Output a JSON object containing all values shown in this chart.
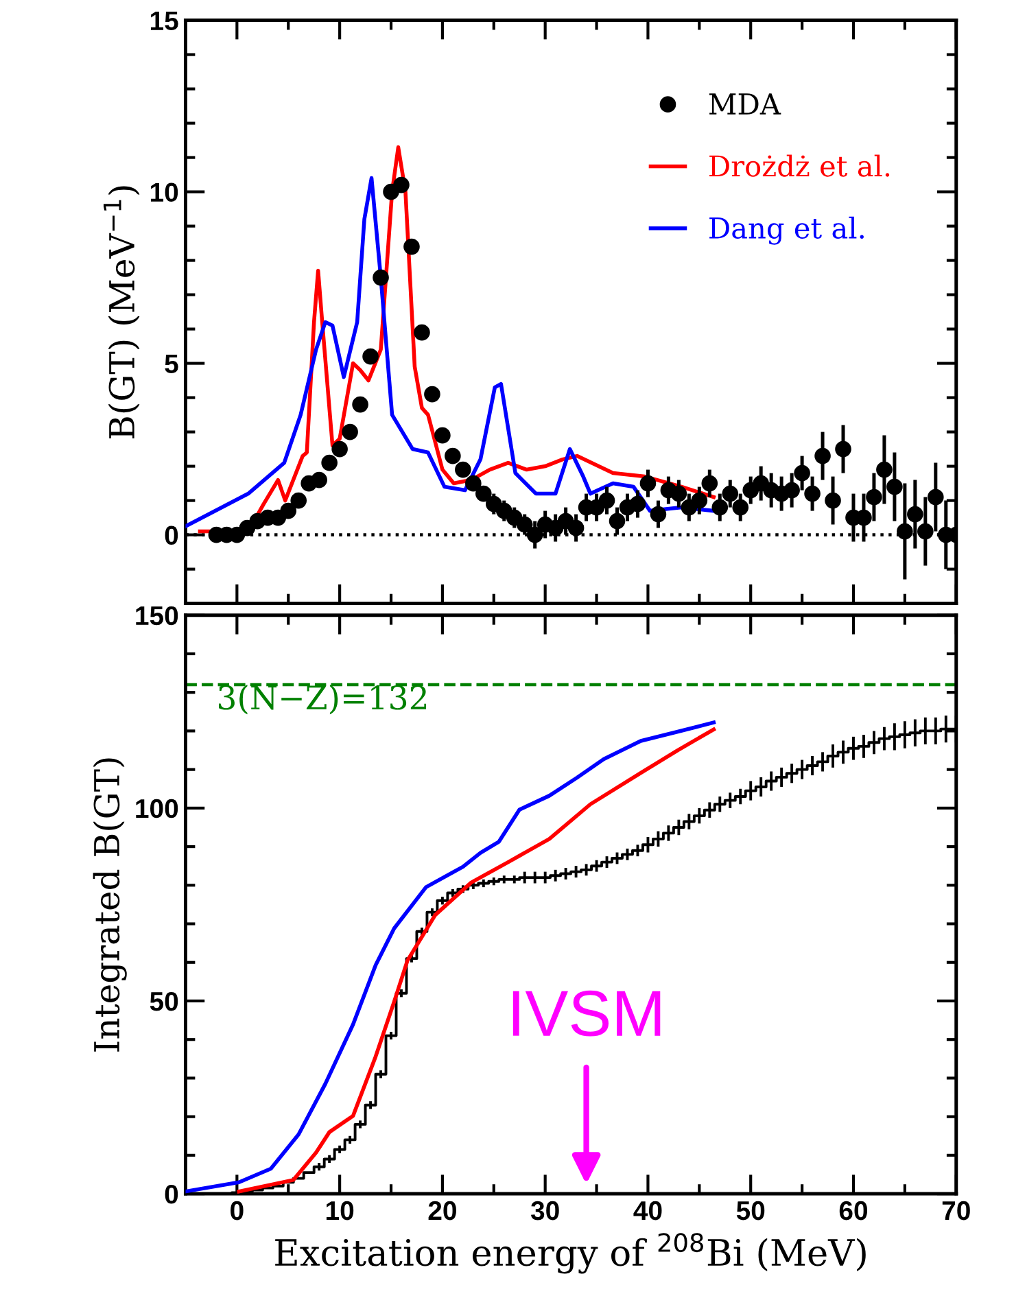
{
  "chart_data": [
    {
      "type": "line",
      "ylabel": "B(GT) (MeV$^{−1}$)",
      "xlim": [
        -5,
        70
      ],
      "xticks": [
        0,
        10,
        20,
        30,
        40,
        50,
        60,
        70
      ],
      "ylim": [
        -2,
        15
      ],
      "yticks": [
        0,
        5,
        10,
        15
      ],
      "tick_labels": "y",
      "legend": "top right",
      "grid": false,
      "ref_lines": [
        {
          "axis": "y",
          "value": 0,
          "color": "#000000",
          "line_style": "dotted"
        }
      ],
      "series": [
        {
          "name": "MDA",
          "type": "scatter",
          "color": "#000000",
          "marker": "circle",
          "x": [
            -2,
            -1,
            0,
            1,
            2,
            3,
            4,
            5,
            6,
            7,
            8,
            9,
            10,
            11,
            12,
            13,
            14,
            15,
            16,
            17,
            18,
            19,
            20,
            21,
            22,
            23,
            24,
            25,
            26,
            27,
            28,
            29,
            30,
            31,
            32,
            33,
            34,
            35,
            36,
            37,
            38,
            39,
            40,
            41,
            42,
            43,
            44,
            45,
            46,
            47,
            48,
            49,
            50,
            51,
            52,
            53,
            54,
            55,
            56,
            57,
            58,
            59,
            60,
            61,
            62,
            63,
            64,
            65,
            66,
            67,
            68,
            69,
            70
          ],
          "values": [
            0.0,
            0.0,
            0.0,
            0.2,
            0.4,
            0.5,
            0.5,
            0.7,
            1.0,
            1.5,
            1.6,
            2.1,
            2.5,
            3.0,
            3.8,
            5.2,
            7.5,
            10.0,
            10.2,
            8.4,
            5.9,
            4.1,
            2.9,
            2.3,
            1.9,
            1.5,
            1.2,
            0.9,
            0.7,
            0.5,
            0.3,
            0.0,
            0.3,
            0.2,
            0.4,
            0.2,
            0.8,
            0.8,
            1.0,
            0.4,
            0.8,
            0.9,
            1.5,
            0.6,
            1.3,
            1.2,
            0.8,
            1.0,
            1.5,
            0.8,
            1.2,
            0.8,
            1.3,
            1.5,
            1.3,
            1.2,
            1.3,
            1.8,
            1.2,
            2.3,
            1.0,
            2.5,
            0.5,
            0.5,
            1.1,
            1.9,
            1.4,
            0.1,
            0.6,
            0.1,
            1.1,
            0.0,
            0.0
          ],
          "errors": [
            0.1,
            0.1,
            0.1,
            0.1,
            0.1,
            0.1,
            0.1,
            0.1,
            0.1,
            0.1,
            0.1,
            0.1,
            0.1,
            0.1,
            0.1,
            0.1,
            0.1,
            0.1,
            0.1,
            0.1,
            0.1,
            0.1,
            0.2,
            0.2,
            0.2,
            0.2,
            0.2,
            0.3,
            0.3,
            0.3,
            0.3,
            0.4,
            0.4,
            0.4,
            0.4,
            0.4,
            0.4,
            0.4,
            0.4,
            0.4,
            0.4,
            0.4,
            0.4,
            0.4,
            0.4,
            0.4,
            0.4,
            0.4,
            0.4,
            0.4,
            0.4,
            0.4,
            0.4,
            0.5,
            0.5,
            0.5,
            0.5,
            0.5,
            0.5,
            0.7,
            0.7,
            0.7,
            0.7,
            0.7,
            0.7,
            1.0,
            1.0,
            1.4,
            1.0,
            1.0,
            1.0,
            1.0,
            1.0
          ]
        },
        {
          "name": "Drożdż et al.",
          "color": "#ff0000",
          "x": [
            -3.6,
            1.1,
            2.6,
            4.0,
            4.7,
            6.4,
            6.8,
            7.5,
            7.9,
            8.3,
            9.3,
            10.0,
            11.3,
            12.0,
            12.8,
            14.0,
            15.1,
            15.7,
            16.4,
            17.3,
            18.0,
            18.6,
            20.0,
            21.1,
            22.8,
            24.6,
            26.4,
            28.2,
            30.0,
            31.7,
            33.1,
            36.6,
            39.7,
            43.3,
            46.4
          ],
          "values": [
            0.1,
            0.1,
            0.9,
            1.6,
            1.0,
            2.3,
            2.4,
            6.2,
            7.7,
            6.2,
            2.6,
            2.8,
            5.0,
            4.8,
            4.5,
            5.4,
            10.0,
            11.3,
            10.0,
            4.9,
            3.7,
            3.5,
            1.9,
            1.5,
            1.6,
            1.9,
            2.1,
            1.9,
            2.0,
            2.2,
            2.3,
            1.8,
            1.7,
            1.4,
            1.1
          ]
        },
        {
          "name": "Dang et al.",
          "color": "#0000ff",
          "x": [
            -5.0,
            1.1,
            4.6,
            6.2,
            7.7,
            8.6,
            9.3,
            10.4,
            11.7,
            12.4,
            13.1,
            14.0,
            15.1,
            17.1,
            18.6,
            20.2,
            22.2,
            23.7,
            25.1,
            25.7,
            27.1,
            29.1,
            31.0,
            32.4,
            33.7,
            34.4,
            36.6,
            38.6,
            40.2,
            43.3,
            46.4
          ],
          "values": [
            0.25,
            1.2,
            2.1,
            3.5,
            5.4,
            6.2,
            6.1,
            4.6,
            6.2,
            9.2,
            10.4,
            7.5,
            3.5,
            2.5,
            2.4,
            1.4,
            1.3,
            2.2,
            4.3,
            4.4,
            1.8,
            1.2,
            1.2,
            2.5,
            1.7,
            1.2,
            1.5,
            1.4,
            0.7,
            0.8,
            0.7
          ]
        }
      ]
    },
    {
      "type": "line",
      "xlabel": "Excitation energy of $^{208}$Bi (MeV)",
      "ylabel": "Integrated B(GT)",
      "xlim": [
        -5,
        70
      ],
      "xticks": [
        0,
        10,
        20,
        30,
        40,
        50,
        60,
        70
      ],
      "ylim": [
        0,
        150
      ],
      "yticks": [
        0,
        50,
        100,
        150
      ],
      "grid": false,
      "ref_lines": [
        {
          "axis": "y",
          "value": 132,
          "label": "3(N−Z)=132",
          "color": "#008000",
          "line_style": "dashed"
        }
      ],
      "annotations": [
        "IVSM"
      ],
      "series": [
        {
          "type": "step",
          "color": "#000000",
          "x": [
            -2,
            -1,
            0,
            1,
            2,
            3,
            4,
            5,
            6,
            7,
            8,
            9,
            10,
            11,
            12,
            13,
            14,
            15,
            16,
            17,
            18,
            19,
            20,
            21,
            22,
            23,
            24,
            25,
            26,
            27,
            28,
            29,
            30,
            31,
            32,
            33,
            34,
            35,
            36,
            37,
            38,
            39,
            40,
            41,
            42,
            43,
            44,
            45,
            46,
            47,
            48,
            49,
            50,
            51,
            52,
            53,
            54,
            55,
            56,
            57,
            58,
            59,
            60,
            61,
            62,
            63,
            64,
            65,
            66,
            67,
            68,
            69,
            70
          ],
          "values": [
            0,
            0,
            0.3,
            0.6,
            1,
            1.5,
            2,
            3,
            4,
            5.5,
            7,
            9,
            11.5,
            14,
            18,
            23,
            31,
            41,
            52,
            61,
            68,
            73,
            76,
            78,
            79,
            80,
            80.5,
            81,
            81.5,
            81.5,
            82,
            82,
            82,
            82.5,
            83,
            83.5,
            84,
            85,
            86,
            87,
            88,
            89,
            90.5,
            92,
            93.5,
            95,
            96.5,
            98,
            99.5,
            101,
            102,
            103,
            104.5,
            105.5,
            107,
            108,
            109,
            110,
            111,
            112,
            113.5,
            114.5,
            115.5,
            116,
            117,
            118,
            118.5,
            119,
            119.5,
            120,
            120,
            120.5,
            120.5
          ],
          "errors": [
            0,
            0,
            0,
            0,
            0,
            0,
            0,
            0,
            0,
            0,
            1,
            1,
            1,
            1,
            1,
            1,
            1,
            1,
            1,
            1,
            1,
            1,
            1,
            1,
            1,
            1,
            1,
            1,
            1,
            1,
            1.5,
            1.5,
            1.5,
            1.5,
            1.5,
            1.5,
            1.5,
            1.5,
            1.5,
            1.5,
            1.5,
            1.5,
            2,
            2,
            2,
            2,
            2,
            2,
            2,
            2,
            2,
            2,
            2.5,
            2.5,
            2.5,
            2.5,
            2.5,
            2.5,
            2.5,
            2.5,
            3,
            3,
            3,
            3,
            3,
            3,
            3.5,
            3.5,
            3.5,
            3.5,
            3.5,
            3.5,
            3.5
          ]
        },
        {
          "color": "#ff0000",
          "x": [
            0.2,
            5.5,
            7.7,
            9.0,
            11.3,
            13.5,
            15.3,
            16.6,
            19.3,
            22.8,
            26.4,
            30.4,
            34.4,
            39.3,
            42.9,
            46.4
          ],
          "values": [
            0.6,
            3.6,
            10.7,
            16.0,
            20.2,
            35.6,
            49.8,
            60.5,
            72.3,
            80.7,
            86,
            92,
            101,
            109.1,
            115,
            120.4
          ]
        },
        {
          "color": "#0000ff",
          "x": [
            -5.0,
            0.2,
            3.3,
            6.0,
            8.6,
            11.3,
            13.5,
            15.3,
            18.4,
            22.0,
            23.7,
            25.5,
            27.5,
            30.4,
            33.1,
            35.7,
            39.3,
            42.9,
            46.4
          ],
          "values": [
            0.6,
            3.0,
            6.5,
            15.4,
            28.5,
            43.9,
            59.3,
            68.8,
            79.5,
            84.8,
            88.4,
            91.3,
            99.6,
            103.2,
            107.9,
            112.7,
            117.4,
            119.8,
            122.2
          ]
        }
      ]
    }
  ]
}
